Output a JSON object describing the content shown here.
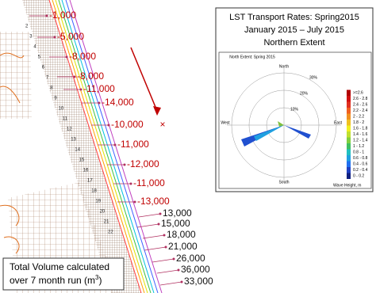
{
  "map": {
    "offshore_labels": [
      "-1,000",
      "-5,000",
      "-8,000",
      "-8,000",
      "-11,000",
      "-14,000",
      "-10,000",
      "-11,000",
      "-12,000",
      "-11,000",
      "-13,000"
    ],
    "onshore_labels": [
      "13,000",
      "15,000",
      "18,000",
      "21,000",
      "26,000",
      "36,000",
      "33,000"
    ],
    "marker": "×",
    "transects": [
      "2",
      "3",
      "4",
      "5",
      "6",
      "7",
      "8",
      "9",
      "10",
      "11",
      "12",
      "13",
      "14",
      "15",
      "16",
      "17",
      "18",
      "19",
      "20",
      "21",
      "22"
    ]
  },
  "note": {
    "line1": "Total Volume calculated",
    "line2": "over 7 month run (m",
    "sup": "3",
    "close": ")"
  },
  "inset": {
    "title": "LST Transport Rates: Spring2015",
    "subtitle": "January 2015 – July 2015",
    "extent": "Northern Extent",
    "rose": {
      "title": "North Extent: Spring 2015",
      "north": "North",
      "south": "South",
      "east": "East",
      "west": "West",
      "rings": [
        "10%",
        "20%",
        "30%"
      ]
    },
    "legend": {
      "bins": [
        ">=2.6",
        "2.6 - 2.8",
        "2.4 - 2.6",
        "2.2 - 2.4",
        "2 - 2.2",
        "1.8 - 2",
        "1.6 - 1.8",
        "1.4 - 1.6",
        "1.2 - 1.4",
        "1 - 1.2",
        "0.8 - 1",
        "0.6 - 0.8",
        "0.4 - 0.6",
        "0.2 - 0.4",
        "0 - 0.2"
      ],
      "title": "Wave Height, m"
    }
  }
}
